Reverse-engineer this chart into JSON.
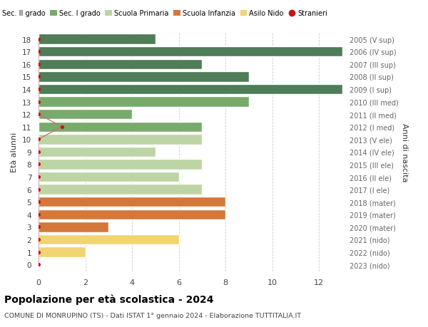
{
  "ages": [
    18,
    17,
    16,
    15,
    14,
    13,
    12,
    11,
    10,
    9,
    8,
    7,
    6,
    5,
    4,
    3,
    2,
    1,
    0
  ],
  "right_labels": [
    "2005 (V sup)",
    "2006 (IV sup)",
    "2007 (III sup)",
    "2008 (II sup)",
    "2009 (I sup)",
    "2010 (III med)",
    "2011 (II med)",
    "2012 (I med)",
    "2013 (V ele)",
    "2014 (IV ele)",
    "2015 (III ele)",
    "2016 (II ele)",
    "2017 (I ele)",
    "2018 (mater)",
    "2019 (mater)",
    "2020 (mater)",
    "2021 (nido)",
    "2022 (nido)",
    "2023 (nido)"
  ],
  "bar_values": [
    5,
    13,
    7,
    9,
    13,
    9,
    4,
    7,
    7,
    5,
    7,
    6,
    7,
    8,
    8,
    3,
    6,
    2,
    0
  ],
  "bar_colors": [
    "#4e7d57",
    "#4e7d57",
    "#4e7d57",
    "#4e7d57",
    "#4e7d57",
    "#78ab6b",
    "#78ab6b",
    "#78ab6b",
    "#bdd4a4",
    "#bdd4a4",
    "#bdd4a4",
    "#bdd4a4",
    "#bdd4a4",
    "#d4783a",
    "#d4783a",
    "#d4783a",
    "#f2d472",
    "#f2d472",
    "#f2d472"
  ],
  "stranieri_x": [
    0,
    0,
    0,
    0,
    0,
    0,
    0,
    1,
    0,
    0,
    0,
    0,
    0,
    0,
    0,
    0,
    0,
    0,
    0
  ],
  "legend_labels": [
    "Sec. II grado",
    "Sec. I grado",
    "Scuola Primaria",
    "Scuola Infanzia",
    "Asilo Nido",
    "Stranieri"
  ],
  "legend_colors": [
    "#4e7d57",
    "#78ab6b",
    "#bdd4a4",
    "#d4783a",
    "#f2d472",
    "#cc1111"
  ],
  "ylabel": "Età alunni",
  "right_ylabel": "Anni di nascita",
  "title": "Popolazione per età scolastica - 2024",
  "subtitle": "COMUNE DI MONRUPINO (TS) - Dati ISTAT 1° gennaio 2024 - Elaborazione TUTTITALIA.IT",
  "xlim": [
    0,
    13
  ],
  "xticks": [
    0,
    2,
    4,
    6,
    8,
    10,
    12
  ],
  "ylim": [
    -0.55,
    18.55
  ],
  "bg_color": "#ffffff",
  "grid_color": "#cccccc",
  "bar_edge_color": "#ffffff",
  "stranieri_dot_color": "#cc1111",
  "stranieri_line_color": "#c87070",
  "right_label_color": "#666666",
  "tick_label_color": "#444444"
}
